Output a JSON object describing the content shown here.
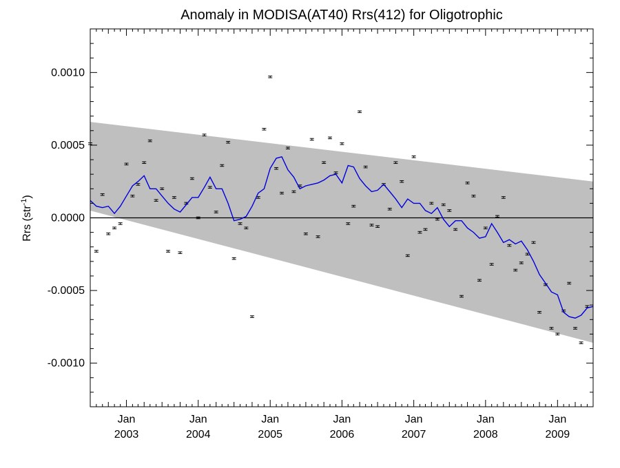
{
  "chart_data": {
    "type": "scatter",
    "title": "Anomaly in MODISA(AT40) Rrs(412) for Oligotrophic",
    "ylabel_main": "Rrs (str",
    "ylabel_sup": "-1",
    "ylabel_close": ")",
    "xlim": [
      "2002-07-01",
      "2009-07-01"
    ],
    "ylim": [
      -0.0013,
      0.0013
    ],
    "x_ticks": [
      {
        "date": "2003-01-01",
        "month": "Jan",
        "year": "2003"
      },
      {
        "date": "2004-01-01",
        "month": "Jan",
        "year": "2004"
      },
      {
        "date": "2005-01-01",
        "month": "Jan",
        "year": "2005"
      },
      {
        "date": "2006-01-01",
        "month": "Jan",
        "year": "2006"
      },
      {
        "date": "2007-01-01",
        "month": "Jan",
        "year": "2007"
      },
      {
        "date": "2008-01-01",
        "month": "Jan",
        "year": "2008"
      },
      {
        "date": "2009-01-01",
        "month": "Jan",
        "year": "2009"
      }
    ],
    "y_ticks": [
      {
        "value": 0.001,
        "label": "0.0010"
      },
      {
        "value": 0.0005,
        "label": "0.0005"
      },
      {
        "value": 0.0,
        "label": "0.0000"
      },
      {
        "value": -0.0005,
        "label": "-0.0005"
      },
      {
        "value": -0.001,
        "label": "-0.0010"
      }
    ],
    "zero_line": 0.0,
    "confidence_band": {
      "color": "#bfbfbf",
      "upper": [
        [
          "2002-07-01",
          0.00066
        ],
        [
          "2009-07-01",
          0.00025
        ]
      ],
      "lower": [
        [
          "2002-07-01",
          5e-05
        ],
        [
          "2009-07-01",
          -0.00086
        ]
      ]
    },
    "series": [
      {
        "kind": "points_with_error_bars",
        "color": "#000000",
        "error": 6e-06,
        "points": [
          [
            "2002-07-01",
            0.00051
          ],
          [
            "2002-08-01",
            -0.00023
          ],
          [
            "2002-09-01",
            0.00016
          ],
          [
            "2002-10-01",
            -0.00011
          ],
          [
            "2002-11-01",
            -7e-05
          ],
          [
            "2002-12-01",
            -4e-05
          ],
          [
            "2003-01-01",
            0.00037
          ],
          [
            "2003-02-01",
            0.00015
          ],
          [
            "2003-03-01",
            0.00023
          ],
          [
            "2003-04-01",
            0.00038
          ],
          [
            "2003-05-01",
            0.00053
          ],
          [
            "2003-06-01",
            0.00012
          ],
          [
            "2003-07-01",
            0.0002
          ],
          [
            "2003-08-01",
            -0.00023
          ],
          [
            "2003-09-01",
            0.00014
          ],
          [
            "2003-10-01",
            -0.00024
          ],
          [
            "2003-11-01",
            0.0001
          ],
          [
            "2003-12-01",
            0.00027
          ],
          [
            "2004-01-01",
            0.0
          ],
          [
            "2004-02-01",
            0.00057
          ],
          [
            "2004-03-01",
            0.00021
          ],
          [
            "2004-04-01",
            4e-05
          ],
          [
            "2004-05-01",
            0.00036
          ],
          [
            "2004-06-01",
            0.00052
          ],
          [
            "2004-07-01",
            -0.00028
          ],
          [
            "2004-08-01",
            -4e-05
          ],
          [
            "2004-09-01",
            -7e-05
          ],
          [
            "2004-10-01",
            -0.00068
          ],
          [
            "2004-11-01",
            0.00014
          ],
          [
            "2004-12-01",
            0.00061
          ],
          [
            "2005-01-01",
            0.00097
          ],
          [
            "2005-02-01",
            0.00034
          ],
          [
            "2005-03-01",
            0.00017
          ],
          [
            "2005-04-01",
            0.00048
          ],
          [
            "2005-05-01",
            0.00018
          ],
          [
            "2005-06-01",
            0.00022
          ],
          [
            "2005-07-01",
            -0.00011
          ],
          [
            "2005-08-01",
            0.00054
          ],
          [
            "2005-09-01",
            -0.00013
          ],
          [
            "2005-10-01",
            0.00038
          ],
          [
            "2005-11-01",
            0.00055
          ],
          [
            "2005-12-01",
            0.00031
          ],
          [
            "2006-01-01",
            0.00051
          ],
          [
            "2006-02-01",
            -4e-05
          ],
          [
            "2006-03-01",
            8e-05
          ],
          [
            "2006-04-01",
            0.00073
          ],
          [
            "2006-05-01",
            0.00035
          ],
          [
            "2006-06-01",
            -5e-05
          ],
          [
            "2006-07-01",
            -6e-05
          ],
          [
            "2006-08-01",
            0.00023
          ],
          [
            "2006-09-01",
            6e-05
          ],
          [
            "2006-10-01",
            0.00038
          ],
          [
            "2006-11-01",
            0.00025
          ],
          [
            "2006-12-01",
            -0.00026
          ],
          [
            "2007-01-01",
            0.00042
          ],
          [
            "2007-02-01",
            -0.0001
          ],
          [
            "2007-03-01",
            -8e-05
          ],
          [
            "2007-04-01",
            0.0001
          ],
          [
            "2007-05-01",
            -1e-05
          ],
          [
            "2007-06-01",
            9e-05
          ],
          [
            "2007-07-01",
            5e-05
          ],
          [
            "2007-08-01",
            -8e-05
          ],
          [
            "2007-09-01",
            -0.00054
          ],
          [
            "2007-10-01",
            0.00024
          ],
          [
            "2007-11-01",
            0.00015
          ],
          [
            "2007-12-01",
            -0.00043
          ],
          [
            "2008-01-01",
            -7e-05
          ],
          [
            "2008-02-01",
            -0.00032
          ],
          [
            "2008-03-01",
            1e-05
          ],
          [
            "2008-04-01",
            0.00014
          ],
          [
            "2008-05-01",
            -0.00019
          ],
          [
            "2008-06-01",
            -0.00036
          ],
          [
            "2008-07-01",
            -0.00031
          ],
          [
            "2008-08-01",
            -0.00025
          ],
          [
            "2008-09-01",
            -0.00017
          ],
          [
            "2008-10-01",
            -0.00065
          ],
          [
            "2008-11-01",
            -0.00046
          ],
          [
            "2008-12-01",
            -0.00076
          ],
          [
            "2009-01-01",
            -0.0008
          ],
          [
            "2009-02-01",
            -0.00064
          ],
          [
            "2009-03-01",
            -0.00045
          ],
          [
            "2009-04-01",
            -0.00076
          ],
          [
            "2009-05-01",
            -0.00086
          ],
          [
            "2009-06-01",
            -0.00061
          ]
        ]
      },
      {
        "kind": "line",
        "color": "#0000dd",
        "points": [
          [
            "2002-07-01",
            0.00012
          ],
          [
            "2002-08-01",
            8e-05
          ],
          [
            "2002-09-01",
            7e-05
          ],
          [
            "2002-10-01",
            8e-05
          ],
          [
            "2002-11-01",
            3e-05
          ],
          [
            "2002-12-01",
            8e-05
          ],
          [
            "2003-01-01",
            0.00015
          ],
          [
            "2003-02-01",
            0.00022
          ],
          [
            "2003-03-01",
            0.00025
          ],
          [
            "2003-04-01",
            0.00029
          ],
          [
            "2003-05-01",
            0.0002
          ],
          [
            "2003-06-01",
            0.0002
          ],
          [
            "2003-07-01",
            0.00015
          ],
          [
            "2003-08-01",
            0.0001
          ],
          [
            "2003-09-01",
            6e-05
          ],
          [
            "2003-10-01",
            4e-05
          ],
          [
            "2003-11-01",
            9e-05
          ],
          [
            "2003-12-01",
            0.00014
          ],
          [
            "2004-01-01",
            0.00014
          ],
          [
            "2004-02-01",
            0.00021
          ],
          [
            "2004-03-01",
            0.00028
          ],
          [
            "2004-04-01",
            0.0002
          ],
          [
            "2004-05-01",
            0.0002
          ],
          [
            "2004-06-01",
            0.0001
          ],
          [
            "2004-07-01",
            -2e-05
          ],
          [
            "2004-08-01",
            -1e-05
          ],
          [
            "2004-09-01",
            1e-05
          ],
          [
            "2004-10-01",
            8e-05
          ],
          [
            "2004-11-01",
            0.00017
          ],
          [
            "2004-12-01",
            0.0002
          ],
          [
            "2005-01-01",
            0.00034
          ],
          [
            "2005-02-01",
            0.00041
          ],
          [
            "2005-03-01",
            0.00042
          ],
          [
            "2005-04-01",
            0.00033
          ],
          [
            "2005-05-01",
            0.00028
          ],
          [
            "2005-06-01",
            0.0002
          ],
          [
            "2005-07-01",
            0.00022
          ],
          [
            "2005-08-01",
            0.00023
          ],
          [
            "2005-09-01",
            0.00024
          ],
          [
            "2005-10-01",
            0.00026
          ],
          [
            "2005-11-01",
            0.00029
          ],
          [
            "2005-12-01",
            0.0003
          ],
          [
            "2006-01-01",
            0.00024
          ],
          [
            "2006-02-01",
            0.00036
          ],
          [
            "2006-03-01",
            0.00035
          ],
          [
            "2006-04-01",
            0.00027
          ],
          [
            "2006-05-01",
            0.00022
          ],
          [
            "2006-06-01",
            0.00018
          ],
          [
            "2006-07-01",
            0.00019
          ],
          [
            "2006-08-01",
            0.00023
          ],
          [
            "2006-09-01",
            0.00018
          ],
          [
            "2006-10-01",
            0.00013
          ],
          [
            "2006-11-01",
            7e-05
          ],
          [
            "2006-12-01",
            0.00013
          ],
          [
            "2007-01-01",
            0.0001
          ],
          [
            "2007-02-01",
            0.0001
          ],
          [
            "2007-03-01",
            5e-05
          ],
          [
            "2007-04-01",
            3e-05
          ],
          [
            "2007-05-01",
            7e-05
          ],
          [
            "2007-06-01",
            -1e-05
          ],
          [
            "2007-07-01",
            -6e-05
          ],
          [
            "2007-08-01",
            -2e-05
          ],
          [
            "2007-09-01",
            -2e-05
          ],
          [
            "2007-10-01",
            -7e-05
          ],
          [
            "2007-11-01",
            -0.0001
          ],
          [
            "2007-12-01",
            -0.00014
          ],
          [
            "2008-01-01",
            -0.00013
          ],
          [
            "2008-02-01",
            -4e-05
          ],
          [
            "2008-03-01",
            -0.0001
          ],
          [
            "2008-04-01",
            -0.00017
          ],
          [
            "2008-05-01",
            -0.00015
          ],
          [
            "2008-06-01",
            -0.00018
          ],
          [
            "2008-07-01",
            -0.00016
          ],
          [
            "2008-08-01",
            -0.00022
          ],
          [
            "2008-09-01",
            -0.0003
          ],
          [
            "2008-10-01",
            -0.00039
          ],
          [
            "2008-11-01",
            -0.00045
          ],
          [
            "2008-12-01",
            -0.00051
          ],
          [
            "2009-01-01",
            -0.00053
          ],
          [
            "2009-02-01",
            -0.00065
          ],
          [
            "2009-03-01",
            -0.00068
          ],
          [
            "2009-04-01",
            -0.00069
          ],
          [
            "2009-05-01",
            -0.00067
          ],
          [
            "2009-06-01",
            -0.00062
          ],
          [
            "2009-07-01",
            -0.00061
          ]
        ]
      }
    ]
  }
}
